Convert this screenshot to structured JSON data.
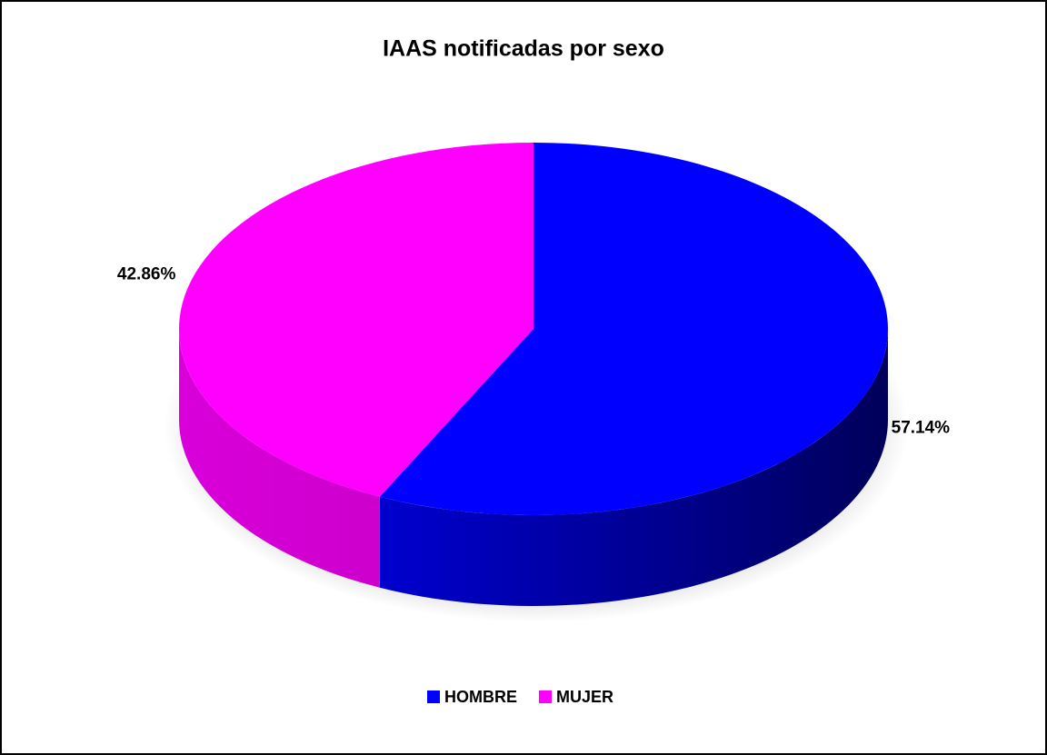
{
  "chart_data": {
    "type": "pie",
    "title": "IAAS notificadas por sexo",
    "categories": [
      "HOMBRE",
      "MUJER"
    ],
    "values": [
      57.14,
      42.86
    ],
    "value_labels": [
      "57.14%",
      "42.86%"
    ],
    "colors": [
      "#0000ff",
      "#ff00ff"
    ],
    "legend": "bottom"
  }
}
